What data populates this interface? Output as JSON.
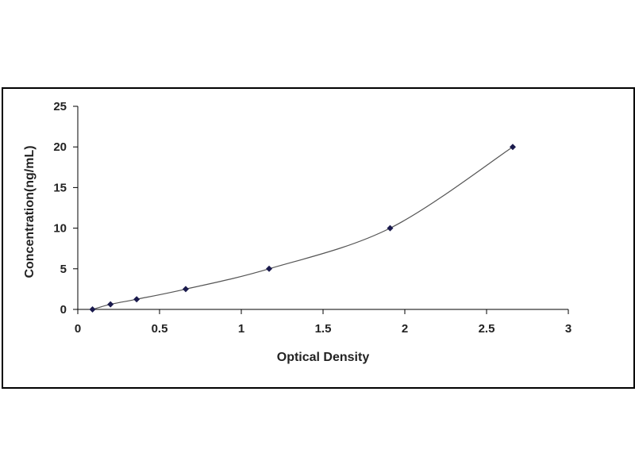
{
  "chart_data": {
    "type": "scatter",
    "title": "",
    "xlabel": "Optical Density",
    "ylabel": "Concentration(ng/mL)",
    "xlim": [
      0,
      3
    ],
    "ylim": [
      0,
      25
    ],
    "xticks": [
      0,
      0.5,
      1,
      1.5,
      2,
      2.5,
      3
    ],
    "yticks": [
      0,
      5,
      10,
      15,
      20,
      25
    ],
    "xtick_labels": [
      "0",
      "0.5",
      "1",
      "1.5",
      "2",
      "2.5",
      "3"
    ],
    "ytick_labels": [
      "0",
      "5",
      "10",
      "15",
      "20",
      "25"
    ],
    "grid": false,
    "legend": "none",
    "trendline": "smooth curve fit",
    "series": [
      {
        "x": [
          0.09,
          0.2,
          0.36,
          0.66,
          1.17,
          1.91,
          2.66
        ],
        "y": [
          0,
          0.625,
          1.25,
          2.5,
          5,
          10,
          20
        ]
      }
    ],
    "colors": {
      "marker": "#1a1a4d",
      "curve": "#555555",
      "axis": "#000000"
    }
  }
}
